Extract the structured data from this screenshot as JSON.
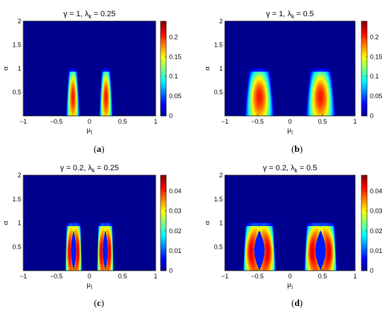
{
  "colormap": [
    "#00008f",
    "#0000ff",
    "#00ffff",
    "#ffff00",
    "#ff0000",
    "#800000"
  ],
  "chart_data": [
    {
      "type": "heatmap",
      "panel": "(a)",
      "title": "γ = 1,  λ_k = 0.25",
      "title_parts": {
        "pre": "γ = 1,  λ",
        "sub": "k",
        "post": " = 0.25"
      },
      "xlabel": "μ",
      "xlabel_sub": "l",
      "ylabel": "α",
      "xlim": [
        -1,
        1
      ],
      "ylim": [
        0,
        2
      ],
      "xticks": [
        "−1",
        "−0.5",
        "0",
        "0.5",
        "1"
      ],
      "yticks": [
        "0.5",
        "1",
        "1.5",
        "2"
      ],
      "colorbar": {
        "range": [
          0,
          0.24
        ],
        "ticks": [
          "0",
          "0.05",
          "0.1",
          "0.15",
          "0.2"
        ]
      },
      "lobes": [
        {
          "center": -0.25,
          "top_halfwidth": 0.07,
          "bottom_halfwidth": 0.11,
          "peak": 0.24,
          "hole": 0
        },
        {
          "center": 0.25,
          "top_halfwidth": 0.07,
          "bottom_halfwidth": 0.11,
          "peak": 0.24,
          "hole": 0
        }
      ],
      "alpha_max": 1.0
    },
    {
      "type": "heatmap",
      "panel": "(b)",
      "title": "γ = 1,  λ_k = 0.5",
      "title_parts": {
        "pre": "γ = 1,  λ",
        "sub": "k",
        "post": " = 0.5"
      },
      "xlabel": "μ",
      "xlabel_sub": "l",
      "ylabel": "α",
      "xlim": [
        -1,
        1
      ],
      "ylim": [
        0,
        2
      ],
      "xticks": [
        "−1",
        "−0.5",
        "0",
        "0.5",
        "1"
      ],
      "yticks": [
        "0.5",
        "1",
        "1.5",
        "2"
      ],
      "colorbar": {
        "range": [
          0,
          0.24
        ],
        "ticks": [
          "0",
          "0.05",
          "0.1",
          "0.15",
          "0.2"
        ]
      },
      "lobes": [
        {
          "center": -0.47,
          "top_halfwidth": 0.17,
          "bottom_halfwidth": 0.24,
          "peak": 0.24,
          "hole": 0
        },
        {
          "center": 0.47,
          "top_halfwidth": 0.17,
          "bottom_halfwidth": 0.24,
          "peak": 0.24,
          "hole": 0
        }
      ],
      "alpha_max": 1.0
    },
    {
      "type": "heatmap",
      "panel": "(c)",
      "title": "γ = 0.2,  λ_k = 0.25",
      "title_parts": {
        "pre": "γ = 0.2,  λ",
        "sub": "k",
        "post": " = 0.25"
      },
      "xlabel": "μ",
      "xlabel_sub": "l",
      "ylabel": "α",
      "xlim": [
        -1,
        1
      ],
      "ylim": [
        0,
        2
      ],
      "xticks": [
        "−1",
        "−0.5",
        "0",
        "0.5",
        "1"
      ],
      "yticks": [
        "0.5",
        "1",
        "1.5",
        "2"
      ],
      "colorbar": {
        "range": [
          0,
          0.048
        ],
        "ticks": [
          "0",
          "0.01",
          "0.02",
          "0.03",
          "0.04"
        ]
      },
      "lobes": [
        {
          "center": -0.24,
          "top_halfwidth": 0.11,
          "bottom_halfwidth": 0.13,
          "peak": 0.048,
          "hole": 0.04
        },
        {
          "center": 0.24,
          "top_halfwidth": 0.11,
          "bottom_halfwidth": 0.13,
          "peak": 0.048,
          "hole": 0.04
        }
      ],
      "alpha_max": 1.0
    },
    {
      "type": "heatmap",
      "panel": "(d)",
      "title": "γ = 0.2,  λ_k = 0.5",
      "title_parts": {
        "pre": "γ = 0.2,  λ",
        "sub": "k",
        "post": " = 0.5"
      },
      "xlabel": "μ",
      "xlabel_sub": "l",
      "ylabel": "α",
      "xlim": [
        -1,
        1
      ],
      "ylim": [
        0,
        2
      ],
      "xticks": [
        "−1",
        "−0.5",
        "0",
        "0.5",
        "1"
      ],
      "yticks": [
        "0.5",
        "1",
        "1.5",
        "2"
      ],
      "colorbar": {
        "range": [
          0,
          0.048
        ],
        "ticks": [
          "0",
          "0.01",
          "0.02",
          "0.03",
          "0.04"
        ]
      },
      "lobes": [
        {
          "center": -0.47,
          "top_halfwidth": 0.22,
          "bottom_halfwidth": 0.26,
          "peak": 0.048,
          "hole": 0.08
        },
        {
          "center": 0.47,
          "top_halfwidth": 0.22,
          "bottom_halfwidth": 0.26,
          "peak": 0.048,
          "hole": 0.08
        }
      ],
      "alpha_max": 1.0
    }
  ]
}
